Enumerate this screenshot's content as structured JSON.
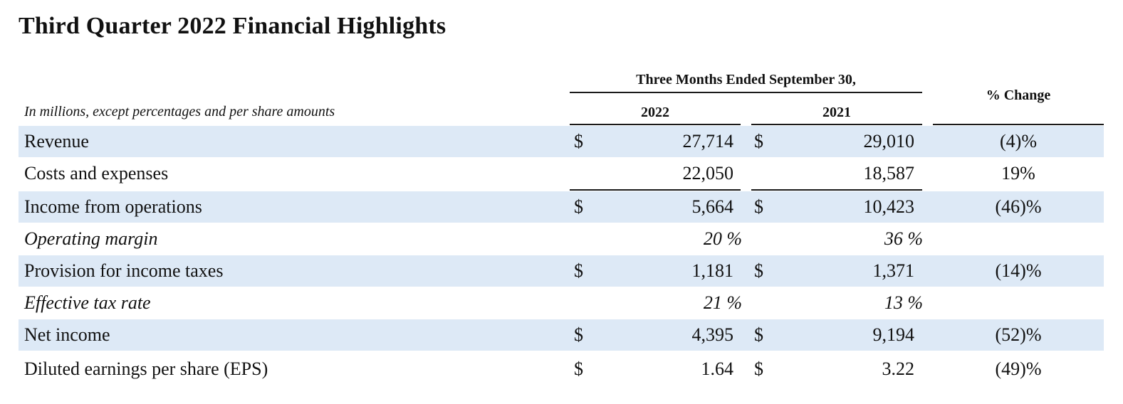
{
  "title": "Third Quarter 2022 Financial Highlights",
  "subtitle": "In millions, except percentages and per share amounts",
  "period_header": "Three Months Ended September 30,",
  "columns": {
    "year_current": "2022",
    "year_prior": "2021",
    "change": "% Change"
  },
  "rows": [
    {
      "label": "Revenue",
      "dollar_current": "$",
      "current": "27,714",
      "dollar_prior": "$",
      "prior": "29,010",
      "change": "(4)%"
    },
    {
      "label": "Costs and expenses",
      "dollar_current": "",
      "current": "22,050",
      "dollar_prior": "",
      "prior": "18,587",
      "change": "19%"
    },
    {
      "label": "Income from operations",
      "dollar_current": "$",
      "current": "5,664",
      "dollar_prior": "$",
      "prior": "10,423",
      "change": "(46)%"
    },
    {
      "label": "Operating margin",
      "dollar_current": "",
      "current": "20 %",
      "dollar_prior": "",
      "prior": "36 %",
      "change": ""
    },
    {
      "label": "Provision for income taxes",
      "dollar_current": "$",
      "current": "1,181",
      "dollar_prior": "$",
      "prior": "1,371",
      "change": "(14)%"
    },
    {
      "label": "Effective tax rate",
      "dollar_current": "",
      "current": "21 %",
      "dollar_prior": "",
      "prior": "13 %",
      "change": ""
    },
    {
      "label": "Net income",
      "dollar_current": "$",
      "current": "4,395",
      "dollar_prior": "$",
      "prior": "9,194",
      "change": "(52)%"
    },
    {
      "label": "Diluted earnings per share (EPS)",
      "dollar_current": "$",
      "current": "1.64",
      "dollar_prior": "$",
      "prior": "3.22",
      "change": "(49)%"
    }
  ],
  "colors": {
    "row_shade": "#dde9f6",
    "text": "#111111",
    "rule": "#1a1a1a"
  }
}
